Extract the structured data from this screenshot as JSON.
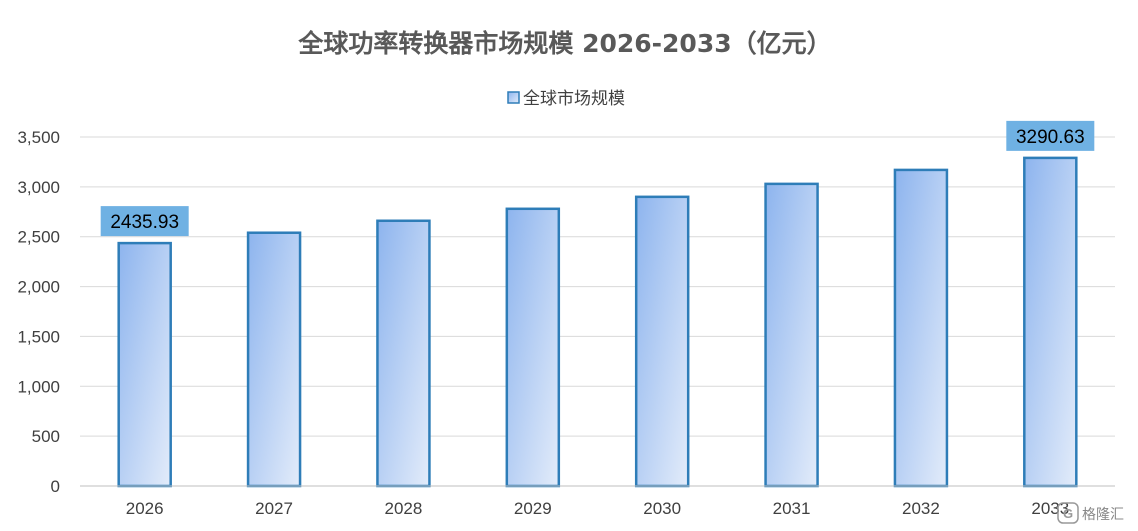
{
  "chart_data": {
    "type": "bar",
    "title": "全球功率转换器市场规模 2026-2033（亿元）",
    "categories": [
      "2026",
      "2027",
      "2028",
      "2029",
      "2030",
      "2031",
      "2032",
      "2033"
    ],
    "series": [
      {
        "name": "全球市场规模",
        "values": [
          2435.93,
          2540,
          2660,
          2780,
          2900,
          3030,
          3170,
          3290.63
        ],
        "labels": [
          "2435.93",
          "",
          "",
          "",
          "",
          "",
          "",
          "3290.63"
        ]
      }
    ],
    "xlabel": "",
    "ylabel": "",
    "ylim": [
      0,
      3500
    ],
    "yticks": [
      0,
      500,
      1000,
      1500,
      2000,
      2500,
      3000,
      3500
    ],
    "ytick_labels": [
      "0",
      "500",
      "1,000",
      "1,500",
      "2,000",
      "2,500",
      "3,000",
      "3,500"
    ],
    "grid": true,
    "legend_position": "top-center",
    "colors": {
      "bar_fill_start": "#8DB4EE",
      "bar_fill_end": "#E3ECFA",
      "bar_stroke": "#2E7DB8",
      "label_bg": "#6FB1E3",
      "grid": "#D9D9D9",
      "text": "#404040",
      "title": "#595959"
    }
  },
  "watermark": {
    "icon": "logo-g-icon",
    "text": "格隆汇"
  }
}
